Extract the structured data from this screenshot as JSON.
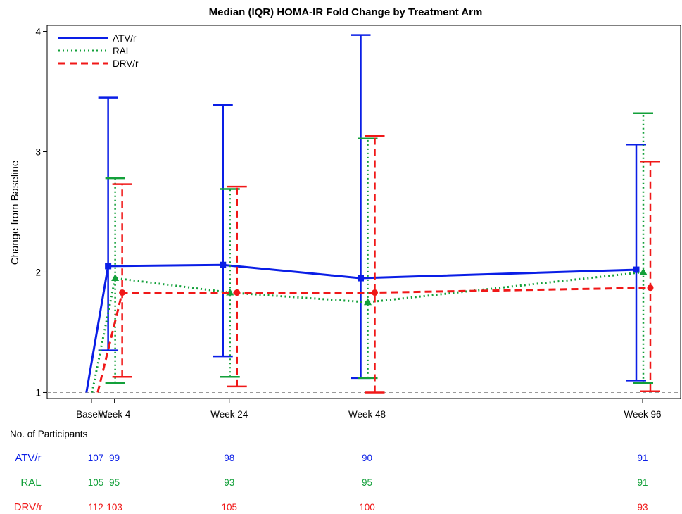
{
  "chart_data": {
    "type": "line",
    "title": "Median (IQR) HOMA-IR Fold Change by Treatment Arm",
    "ylabel": "Change from Baseline",
    "xlabel": "",
    "categories": [
      "Baseline",
      "Week 4",
      "Week 24",
      "Week 48",
      "Week 96"
    ],
    "x_weeks": [
      0,
      4,
      24,
      48,
      96
    ],
    "ylim": [
      0.95,
      4.05
    ],
    "yticks": [
      "1",
      "2",
      "3",
      "4"
    ],
    "reference_line": 1,
    "legend_position": "top-left",
    "series": [
      {
        "name": "ATV/r",
        "color": "#0a1ee6",
        "line_style": "solid",
        "marker": "square",
        "median": [
          1,
          2.05,
          2.06,
          1.95,
          2.02
        ],
        "q1": [
          null,
          1.35,
          1.3,
          1.12,
          1.1
        ],
        "q3": [
          null,
          3.45,
          3.39,
          3.97,
          3.06
        ]
      },
      {
        "name": "RAL",
        "color": "#13a03a",
        "line_style": "dotted",
        "marker": "triangle",
        "median": [
          1,
          1.95,
          1.83,
          1.75,
          2.0
        ],
        "q1": [
          null,
          1.08,
          1.13,
          1.12,
          1.08
        ],
        "q3": [
          null,
          2.78,
          2.69,
          3.11,
          3.32
        ]
      },
      {
        "name": "DRV/r",
        "color": "#f01818",
        "line_style": "dashed",
        "marker": "circle",
        "median": [
          1,
          1.83,
          1.83,
          1.83,
          1.87
        ],
        "q1": [
          null,
          1.13,
          1.05,
          1.0,
          1.01
        ],
        "q3": [
          null,
          2.73,
          2.71,
          3.13,
          2.92
        ]
      }
    ]
  },
  "participants": {
    "header": "No. of Participants",
    "rows": [
      {
        "label": "ATV/r",
        "color": "#0a1ee6",
        "counts": [
          "107",
          "99",
          "98",
          "90",
          "91"
        ]
      },
      {
        "label": "RAL",
        "color": "#13a03a",
        "counts": [
          "105",
          "95",
          "93",
          "95",
          "91"
        ]
      },
      {
        "label": "DRV/r",
        "color": "#f01818",
        "counts": [
          "112",
          "103",
          "105",
          "100",
          "93"
        ]
      }
    ]
  }
}
